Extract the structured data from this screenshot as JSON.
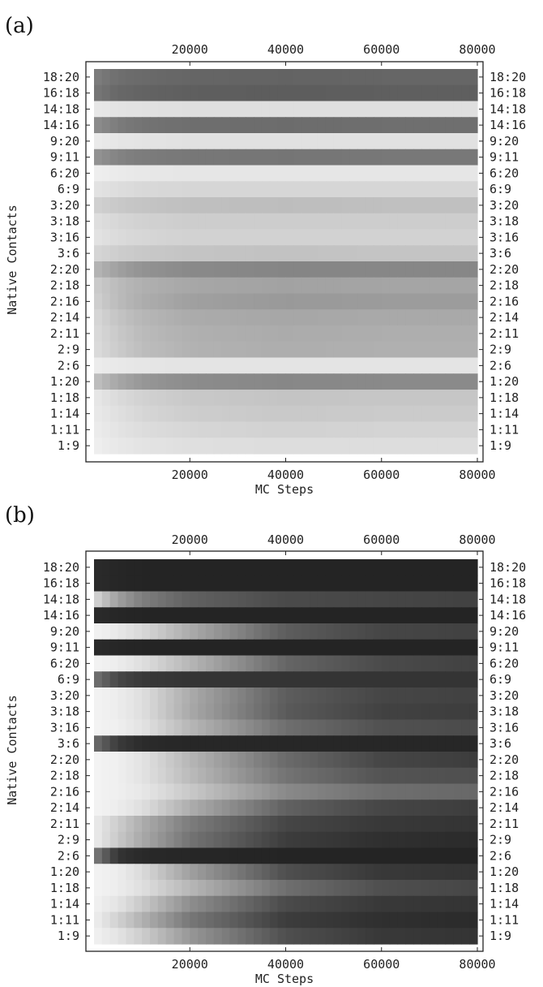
{
  "chart_data": [
    {
      "type": "heatmap",
      "panel_label": "(a)",
      "xlabel": "MC Steps",
      "ylabel": "Native Contacts",
      "xticks": [
        20000,
        40000,
        60000,
        80000
      ],
      "xlim": [
        0,
        80000
      ],
      "colormap": "grayscale (white = low, black = high)",
      "rows": [
        "18:20",
        "16:18",
        "14:18",
        "14:16",
        "9:20",
        "9:11",
        "6:20",
        "6:9",
        "3:20",
        "3:18",
        "3:16",
        "3:6",
        "2:20",
        "2:18",
        "2:16",
        "2:14",
        "2:11",
        "2:9",
        "2:6",
        "1:20",
        "1:18",
        "1:14",
        "1:11",
        "1:9"
      ],
      "x_samples": [
        0,
        5000,
        10000,
        20000,
        40000,
        60000,
        80000
      ],
      "values": [
        [
          0.55,
          0.62,
          0.64,
          0.66,
          0.67,
          0.66,
          0.66
        ],
        [
          0.58,
          0.65,
          0.67,
          0.69,
          0.7,
          0.69,
          0.69
        ],
        [
          0.08,
          0.1,
          0.11,
          0.12,
          0.12,
          0.12,
          0.12
        ],
        [
          0.48,
          0.56,
          0.6,
          0.62,
          0.63,
          0.62,
          0.62
        ],
        [
          0.07,
          0.09,
          0.1,
          0.11,
          0.11,
          0.11,
          0.11
        ],
        [
          0.45,
          0.53,
          0.56,
          0.58,
          0.59,
          0.58,
          0.58
        ],
        [
          0.05,
          0.07,
          0.08,
          0.09,
          0.09,
          0.09,
          0.09
        ],
        [
          0.1,
          0.13,
          0.15,
          0.16,
          0.16,
          0.16,
          0.16
        ],
        [
          0.18,
          0.22,
          0.24,
          0.26,
          0.27,
          0.26,
          0.26
        ],
        [
          0.12,
          0.16,
          0.18,
          0.2,
          0.2,
          0.2,
          0.2
        ],
        [
          0.1,
          0.14,
          0.16,
          0.18,
          0.18,
          0.18,
          0.18
        ],
        [
          0.16,
          0.2,
          0.22,
          0.24,
          0.25,
          0.24,
          0.24
        ],
        [
          0.3,
          0.4,
          0.46,
          0.5,
          0.52,
          0.51,
          0.51
        ],
        [
          0.2,
          0.28,
          0.33,
          0.37,
          0.39,
          0.38,
          0.38
        ],
        [
          0.18,
          0.28,
          0.34,
          0.4,
          0.43,
          0.42,
          0.42
        ],
        [
          0.15,
          0.24,
          0.3,
          0.35,
          0.37,
          0.36,
          0.36
        ],
        [
          0.14,
          0.22,
          0.28,
          0.33,
          0.35,
          0.34,
          0.34
        ],
        [
          0.13,
          0.21,
          0.27,
          0.32,
          0.34,
          0.33,
          0.33
        ],
        [
          0.06,
          0.08,
          0.09,
          0.1,
          0.1,
          0.1,
          0.1
        ],
        [
          0.25,
          0.37,
          0.44,
          0.49,
          0.51,
          0.5,
          0.5
        ],
        [
          0.08,
          0.14,
          0.18,
          0.22,
          0.24,
          0.23,
          0.23
        ],
        [
          0.07,
          0.12,
          0.16,
          0.2,
          0.22,
          0.21,
          0.21
        ],
        [
          0.06,
          0.1,
          0.13,
          0.16,
          0.18,
          0.17,
          0.17
        ],
        [
          0.05,
          0.08,
          0.1,
          0.12,
          0.13,
          0.13,
          0.13
        ]
      ]
    },
    {
      "type": "heatmap",
      "panel_label": "(b)",
      "xlabel": "MC Steps",
      "ylabel": "Native Contacts",
      "xticks": [
        20000,
        40000,
        60000,
        80000
      ],
      "xlim": [
        0,
        80000
      ],
      "colormap": "grayscale (white = low, black = high)",
      "rows": [
        "18:20",
        "16:18",
        "14:18",
        "14:16",
        "9:20",
        "9:11",
        "6:20",
        "6:9",
        "3:20",
        "3:18",
        "3:16",
        "3:6",
        "2:20",
        "2:18",
        "2:16",
        "2:14",
        "2:11",
        "2:9",
        "2:6",
        "1:20",
        "1:18",
        "1:14",
        "1:11",
        "1:9"
      ],
      "x_samples": [
        0,
        5000,
        10000,
        20000,
        40000,
        60000,
        80000
      ],
      "values": [
        [
          0.92,
          0.94,
          0.95,
          0.95,
          0.95,
          0.95,
          0.95
        ],
        [
          0.92,
          0.94,
          0.95,
          0.95,
          0.95,
          0.95,
          0.95
        ],
        [
          0.15,
          0.4,
          0.55,
          0.68,
          0.78,
          0.8,
          0.82
        ],
        [
          0.92,
          0.94,
          0.95,
          0.95,
          0.95,
          0.95,
          0.95
        ],
        [
          0.03,
          0.08,
          0.15,
          0.35,
          0.7,
          0.8,
          0.82
        ],
        [
          0.92,
          0.94,
          0.95,
          0.95,
          0.95,
          0.95,
          0.95
        ],
        [
          0.03,
          0.06,
          0.12,
          0.3,
          0.66,
          0.78,
          0.82
        ],
        [
          0.6,
          0.8,
          0.86,
          0.88,
          0.88,
          0.88,
          0.88
        ],
        [
          0.03,
          0.06,
          0.12,
          0.35,
          0.7,
          0.8,
          0.82
        ],
        [
          0.03,
          0.06,
          0.12,
          0.36,
          0.71,
          0.82,
          0.84
        ],
        [
          0.03,
          0.05,
          0.1,
          0.3,
          0.62,
          0.75,
          0.78
        ],
        [
          0.62,
          0.85,
          0.92,
          0.94,
          0.94,
          0.94,
          0.94
        ],
        [
          0.03,
          0.05,
          0.1,
          0.3,
          0.64,
          0.8,
          0.84
        ],
        [
          0.03,
          0.05,
          0.1,
          0.28,
          0.6,
          0.74,
          0.76
        ],
        [
          0.03,
          0.05,
          0.08,
          0.22,
          0.5,
          0.62,
          0.65
        ],
        [
          0.03,
          0.06,
          0.12,
          0.34,
          0.68,
          0.8,
          0.84
        ],
        [
          0.06,
          0.2,
          0.34,
          0.56,
          0.8,
          0.86,
          0.88
        ],
        [
          0.06,
          0.22,
          0.36,
          0.6,
          0.84,
          0.9,
          0.92
        ],
        [
          0.55,
          0.88,
          0.93,
          0.94,
          0.95,
          0.95,
          0.95
        ],
        [
          0.03,
          0.06,
          0.14,
          0.4,
          0.76,
          0.86,
          0.88
        ],
        [
          0.03,
          0.06,
          0.12,
          0.3,
          0.62,
          0.76,
          0.8
        ],
        [
          0.04,
          0.1,
          0.22,
          0.48,
          0.78,
          0.86,
          0.88
        ],
        [
          0.05,
          0.18,
          0.32,
          0.58,
          0.84,
          0.9,
          0.92
        ],
        [
          0.04,
          0.1,
          0.2,
          0.44,
          0.76,
          0.86,
          0.88
        ]
      ]
    }
  ]
}
